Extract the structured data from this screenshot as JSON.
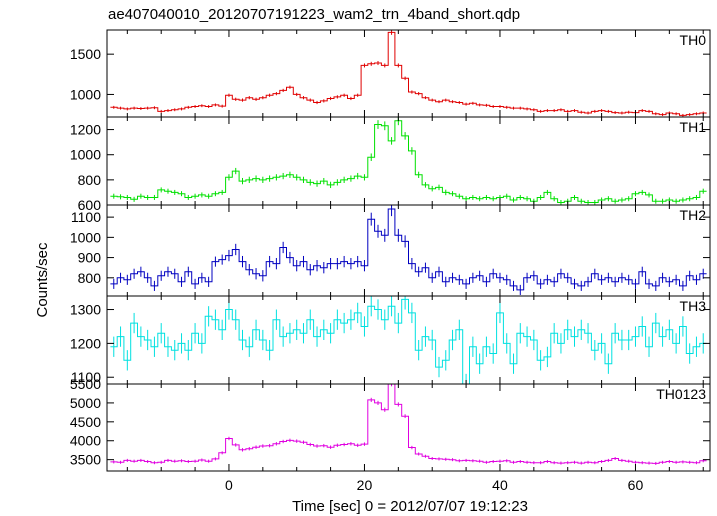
{
  "chart_data": {
    "type": "line",
    "title": "ae407040010_20120707191223_wam2_trn_4band_short.qdp",
    "xlabel": "Time [sec] 0 = 2012/07/07 19:12:23",
    "ylabel": "Counts/sec",
    "xlim": [
      -18,
      71
    ],
    "xticks": [
      0,
      20,
      40,
      60
    ],
    "bin_width": 1,
    "x": [
      -17,
      -16,
      -15,
      -14,
      -13,
      -12,
      -11,
      -10,
      -9,
      -8,
      -7,
      -6,
      -5,
      -4,
      -3,
      -2,
      -1,
      0,
      1,
      2,
      3,
      4,
      5,
      6,
      7,
      8,
      9,
      10,
      11,
      12,
      13,
      14,
      15,
      16,
      17,
      18,
      19,
      20,
      21,
      22,
      23,
      24,
      25,
      26,
      27,
      28,
      29,
      30,
      31,
      32,
      33,
      34,
      35,
      36,
      37,
      38,
      39,
      40,
      41,
      42,
      43,
      44,
      45,
      46,
      47,
      48,
      49,
      50,
      51,
      52,
      53,
      54,
      55,
      56,
      57,
      58,
      59,
      60,
      61,
      62,
      63,
      64,
      65,
      66,
      67,
      68,
      69,
      70
    ],
    "panels": [
      {
        "name": "TH0",
        "color": "#e00000",
        "ylim": [
          720,
          1800
        ],
        "yticks": [
          1000,
          1500
        ],
        "values": [
          840,
          830,
          820,
          830,
          825,
          830,
          835,
          790,
          800,
          810,
          820,
          840,
          850,
          860,
          850,
          870,
          855,
          990,
          940,
          930,
          960,
          940,
          960,
          990,
          1010,
          1050,
          1090,
          1000,
          960,
          930,
          900,
          920,
          950,
          970,
          990,
          950,
          990,
          1360,
          1380,
          1390,
          1360,
          1770,
          1360,
          1200,
          1030,
          1010,
          960,
          930,
          910,
          930,
          910,
          900,
          880,
          890,
          870,
          865,
          850,
          850,
          840,
          830,
          830,
          820,
          810,
          790,
          800,
          800,
          810,
          790,
          800,
          780,
          770,
          790,
          800,
          790,
          775,
          770,
          780,
          775,
          800,
          790,
          760,
          750,
          770,
          760,
          740,
          750,
          760,
          770
        ],
        "errors": [
          18,
          18,
          18,
          18,
          18,
          18,
          18,
          18,
          18,
          18,
          18,
          18,
          18,
          18,
          18,
          18,
          18,
          20,
          20,
          20,
          20,
          20,
          20,
          20,
          20,
          20,
          20,
          20,
          20,
          20,
          20,
          20,
          20,
          20,
          20,
          20,
          20,
          25,
          25,
          25,
          25,
          30,
          25,
          22,
          20,
          20,
          18,
          18,
          18,
          18,
          18,
          18,
          18,
          18,
          18,
          18,
          18,
          18,
          18,
          18,
          18,
          18,
          18,
          18,
          18,
          18,
          18,
          18,
          18,
          18,
          18,
          18,
          18,
          18,
          18,
          18,
          18,
          18,
          18,
          18,
          18,
          18,
          18,
          18,
          18,
          18,
          18,
          18
        ]
      },
      {
        "name": "TH1",
        "color": "#00e000",
        "ylim": [
          600,
          1300
        ],
        "yticks": [
          600,
          800,
          1000,
          1200
        ],
        "values": [
          670,
          665,
          660,
          645,
          670,
          660,
          660,
          720,
          710,
          700,
          690,
          660,
          670,
          680,
          670,
          690,
          700,
          820,
          870,
          790,
          800,
          810,
          800,
          810,
          820,
          830,
          840,
          820,
          800,
          780,
          770,
          790,
          760,
          780,
          800,
          810,
          830,
          820,
          980,
          1240,
          1230,
          1110,
          1270,
          1150,
          1030,
          840,
          760,
          730,
          740,
          700,
          690,
          670,
          650,
          660,
          650,
          660,
          650,
          660,
          670,
          640,
          660,
          650,
          630,
          660,
          700,
          650,
          620,
          630,
          660,
          630,
          620,
          620,
          640,
          650,
          630,
          640,
          650,
          690,
          700,
          680,
          630,
          630,
          640,
          630,
          640,
          650,
          660,
          710
        ],
        "errors": [
          20,
          20,
          20,
          20,
          20,
          20,
          20,
          20,
          20,
          20,
          20,
          20,
          20,
          20,
          20,
          20,
          20,
          25,
          25,
          25,
          25,
          25,
          25,
          25,
          25,
          25,
          25,
          25,
          25,
          25,
          25,
          25,
          25,
          25,
          25,
          25,
          25,
          25,
          30,
          35,
          35,
          30,
          35,
          30,
          30,
          25,
          22,
          22,
          22,
          22,
          20,
          20,
          20,
          20,
          20,
          20,
          20,
          20,
          20,
          20,
          20,
          20,
          20,
          20,
          20,
          20,
          20,
          20,
          20,
          20,
          20,
          20,
          20,
          20,
          20,
          20,
          20,
          20,
          20,
          20,
          20,
          20,
          20,
          20,
          20,
          20,
          20,
          20
        ]
      },
      {
        "name": "TH2",
        "color": "#0000c0",
        "ylim": [
          710,
          1160
        ],
        "yticks": [
          800,
          900,
          1000,
          1100
        ],
        "values": [
          770,
          800,
          790,
          820,
          830,
          800,
          760,
          810,
          830,
          820,
          780,
          830,
          770,
          800,
          780,
          880,
          890,
          910,
          940,
          880,
          840,
          820,
          810,
          880,
          870,
          950,
          900,
          860,
          880,
          840,
          860,
          850,
          870,
          870,
          880,
          870,
          880,
          860,
          1090,
          1030,
          1010,
          1140,
          1010,
          980,
          870,
          830,
          850,
          800,
          830,
          780,
          800,
          790,
          770,
          800,
          810,
          780,
          820,
          800,
          790,
          760,
          740,
          800,
          810,
          770,
          790,
          780,
          820,
          800,
          770,
          760,
          780,
          820,
          790,
          800,
          780,
          800,
          790,
          770,
          830,
          770,
          760,
          800,
          780,
          790,
          760,
          810,
          790,
          820
        ],
        "errors": [
          25,
          25,
          25,
          25,
          25,
          25,
          25,
          25,
          25,
          25,
          25,
          25,
          25,
          25,
          25,
          25,
          25,
          28,
          28,
          28,
          28,
          28,
          28,
          28,
          28,
          28,
          28,
          28,
          28,
          28,
          28,
          28,
          28,
          28,
          28,
          28,
          28,
          28,
          32,
          32,
          32,
          35,
          32,
          30,
          28,
          25,
          25,
          25,
          25,
          25,
          25,
          25,
          25,
          25,
          25,
          25,
          25,
          25,
          25,
          25,
          25,
          25,
          25,
          25,
          25,
          25,
          25,
          25,
          25,
          25,
          25,
          25,
          25,
          25,
          25,
          25,
          25,
          25,
          25,
          25,
          25,
          25,
          25,
          25,
          25,
          25,
          25,
          25
        ]
      },
      {
        "name": "TH3",
        "color": "#00e0e0",
        "ylim": [
          1080,
          1340
        ],
        "yticks": [
          1100,
          1200,
          1300
        ],
        "values": [
          1190,
          1220,
          1150,
          1260,
          1220,
          1210,
          1190,
          1230,
          1190,
          1180,
          1200,
          1180,
          1230,
          1200,
          1280,
          1270,
          1240,
          1300,
          1270,
          1210,
          1190,
          1240,
          1210,
          1180,
          1270,
          1220,
          1230,
          1240,
          1230,
          1270,
          1220,
          1240,
          1230,
          1270,
          1260,
          1270,
          1290,
          1250,
          1310,
          1300,
          1270,
          1310,
          1260,
          1330,
          1290,
          1180,
          1220,
          1210,
          1130,
          1150,
          1210,
          1240,
          1080,
          1190,
          1140,
          1190,
          1170,
          1290,
          1200,
          1140,
          1230,
          1220,
          1210,
          1150,
          1160,
          1230,
          1200,
          1240,
          1220,
          1240,
          1230,
          1180,
          1200,
          1140,
          1230,
          1210,
          1210,
          1220,
          1250,
          1190,
          1260,
          1220,
          1240,
          1200,
          1250,
          1170,
          1190,
          1200
        ],
        "errors": [
          30,
          30,
          30,
          30,
          30,
          30,
          30,
          30,
          30,
          30,
          30,
          30,
          30,
          30,
          30,
          30,
          30,
          30,
          30,
          30,
          30,
          30,
          30,
          30,
          30,
          30,
          30,
          30,
          30,
          30,
          30,
          30,
          30,
          30,
          30,
          30,
          30,
          30,
          30,
          30,
          30,
          30,
          30,
          30,
          30,
          30,
          30,
          30,
          30,
          30,
          30,
          30,
          30,
          30,
          30,
          30,
          30,
          30,
          30,
          30,
          30,
          30,
          30,
          30,
          30,
          30,
          30,
          30,
          30,
          30,
          30,
          30,
          30,
          30,
          30,
          30,
          30,
          30,
          30,
          30,
          30,
          30,
          30,
          30,
          30,
          30,
          30,
          30
        ]
      },
      {
        "name": "TH0123",
        "color": "#e000e0",
        "ylim": [
          3200,
          5500
        ],
        "yticks": [
          3500,
          4000,
          4500,
          5000,
          5500
        ],
        "values": [
          3440,
          3430,
          3480,
          3460,
          3480,
          3450,
          3420,
          3430,
          3480,
          3460,
          3470,
          3450,
          3460,
          3490,
          3460,
          3520,
          3680,
          4060,
          3890,
          3760,
          3790,
          3830,
          3860,
          3870,
          3920,
          3980,
          4010,
          3990,
          3960,
          3900,
          3860,
          3870,
          3830,
          3880,
          3900,
          3920,
          3880,
          3910,
          5080,
          5000,
          4820,
          5500,
          4960,
          4650,
          3820,
          3650,
          3590,
          3530,
          3520,
          3510,
          3500,
          3470,
          3480,
          3470,
          3460,
          3430,
          3450,
          3460,
          3470,
          3430,
          3450,
          3430,
          3420,
          3420,
          3450,
          3420,
          3410,
          3420,
          3430,
          3410,
          3430,
          3420,
          3450,
          3480,
          3530,
          3480,
          3460,
          3430,
          3420,
          3410,
          3400,
          3430,
          3450,
          3430,
          3440,
          3430,
          3420,
          3470
        ],
        "errors": [
          40,
          40,
          40,
          40,
          40,
          40,
          40,
          40,
          40,
          40,
          40,
          40,
          40,
          40,
          40,
          40,
          40,
          45,
          45,
          45,
          45,
          45,
          45,
          45,
          45,
          45,
          45,
          45,
          45,
          45,
          45,
          45,
          45,
          45,
          45,
          45,
          45,
          45,
          55,
          55,
          55,
          60,
          55,
          50,
          45,
          40,
          40,
          40,
          40,
          40,
          40,
          40,
          40,
          40,
          40,
          40,
          40,
          40,
          40,
          40,
          40,
          40,
          40,
          40,
          40,
          40,
          40,
          40,
          40,
          40,
          40,
          40,
          40,
          40,
          40,
          40,
          40,
          40,
          40,
          40,
          40,
          40,
          40,
          40,
          40,
          40,
          40,
          40
        ]
      }
    ]
  }
}
